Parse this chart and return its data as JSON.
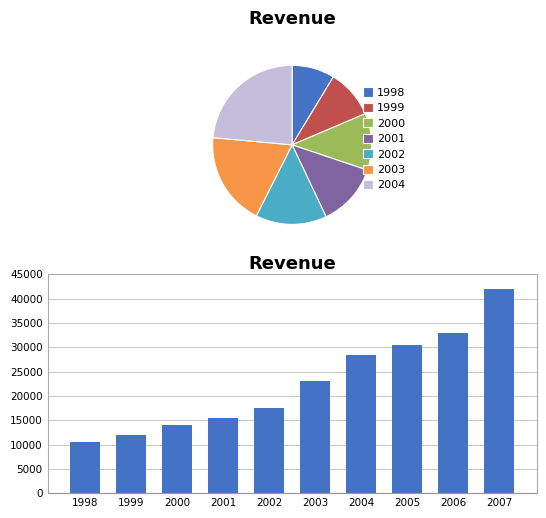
{
  "title": "Revenue",
  "pie_labels": [
    "1998",
    "1999",
    "2000",
    "2001",
    "2002",
    "2003",
    "2004"
  ],
  "pie_values": [
    10500,
    12000,
    14000,
    15500,
    17500,
    23000,
    28500
  ],
  "pie_colors": [
    "#4472C4",
    "#C0504D",
    "#9BBB59",
    "#8064A2",
    "#4BACC6",
    "#F79646",
    "#C4BEDB"
  ],
  "bar_years": [
    "1998",
    "1999",
    "2000",
    "2001",
    "2002",
    "2003",
    "2004",
    "2005",
    "2006",
    "2007"
  ],
  "bar_values": [
    10500,
    12000,
    14000,
    15500,
    17500,
    23000,
    28500,
    30500,
    33000,
    42000
  ],
  "bar_color": "#4472C4",
  "bar_title": "Revenue",
  "bar_ylim": [
    0,
    45000
  ],
  "bar_yticks": [
    0,
    5000,
    10000,
    15000,
    20000,
    25000,
    30000,
    35000,
    40000,
    45000
  ],
  "chart_bg": "#FFFFFF",
  "grid_color": "#C8C8C8",
  "outer_bg": "#FFFFFF",
  "panel_border": "#AAAAAA"
}
